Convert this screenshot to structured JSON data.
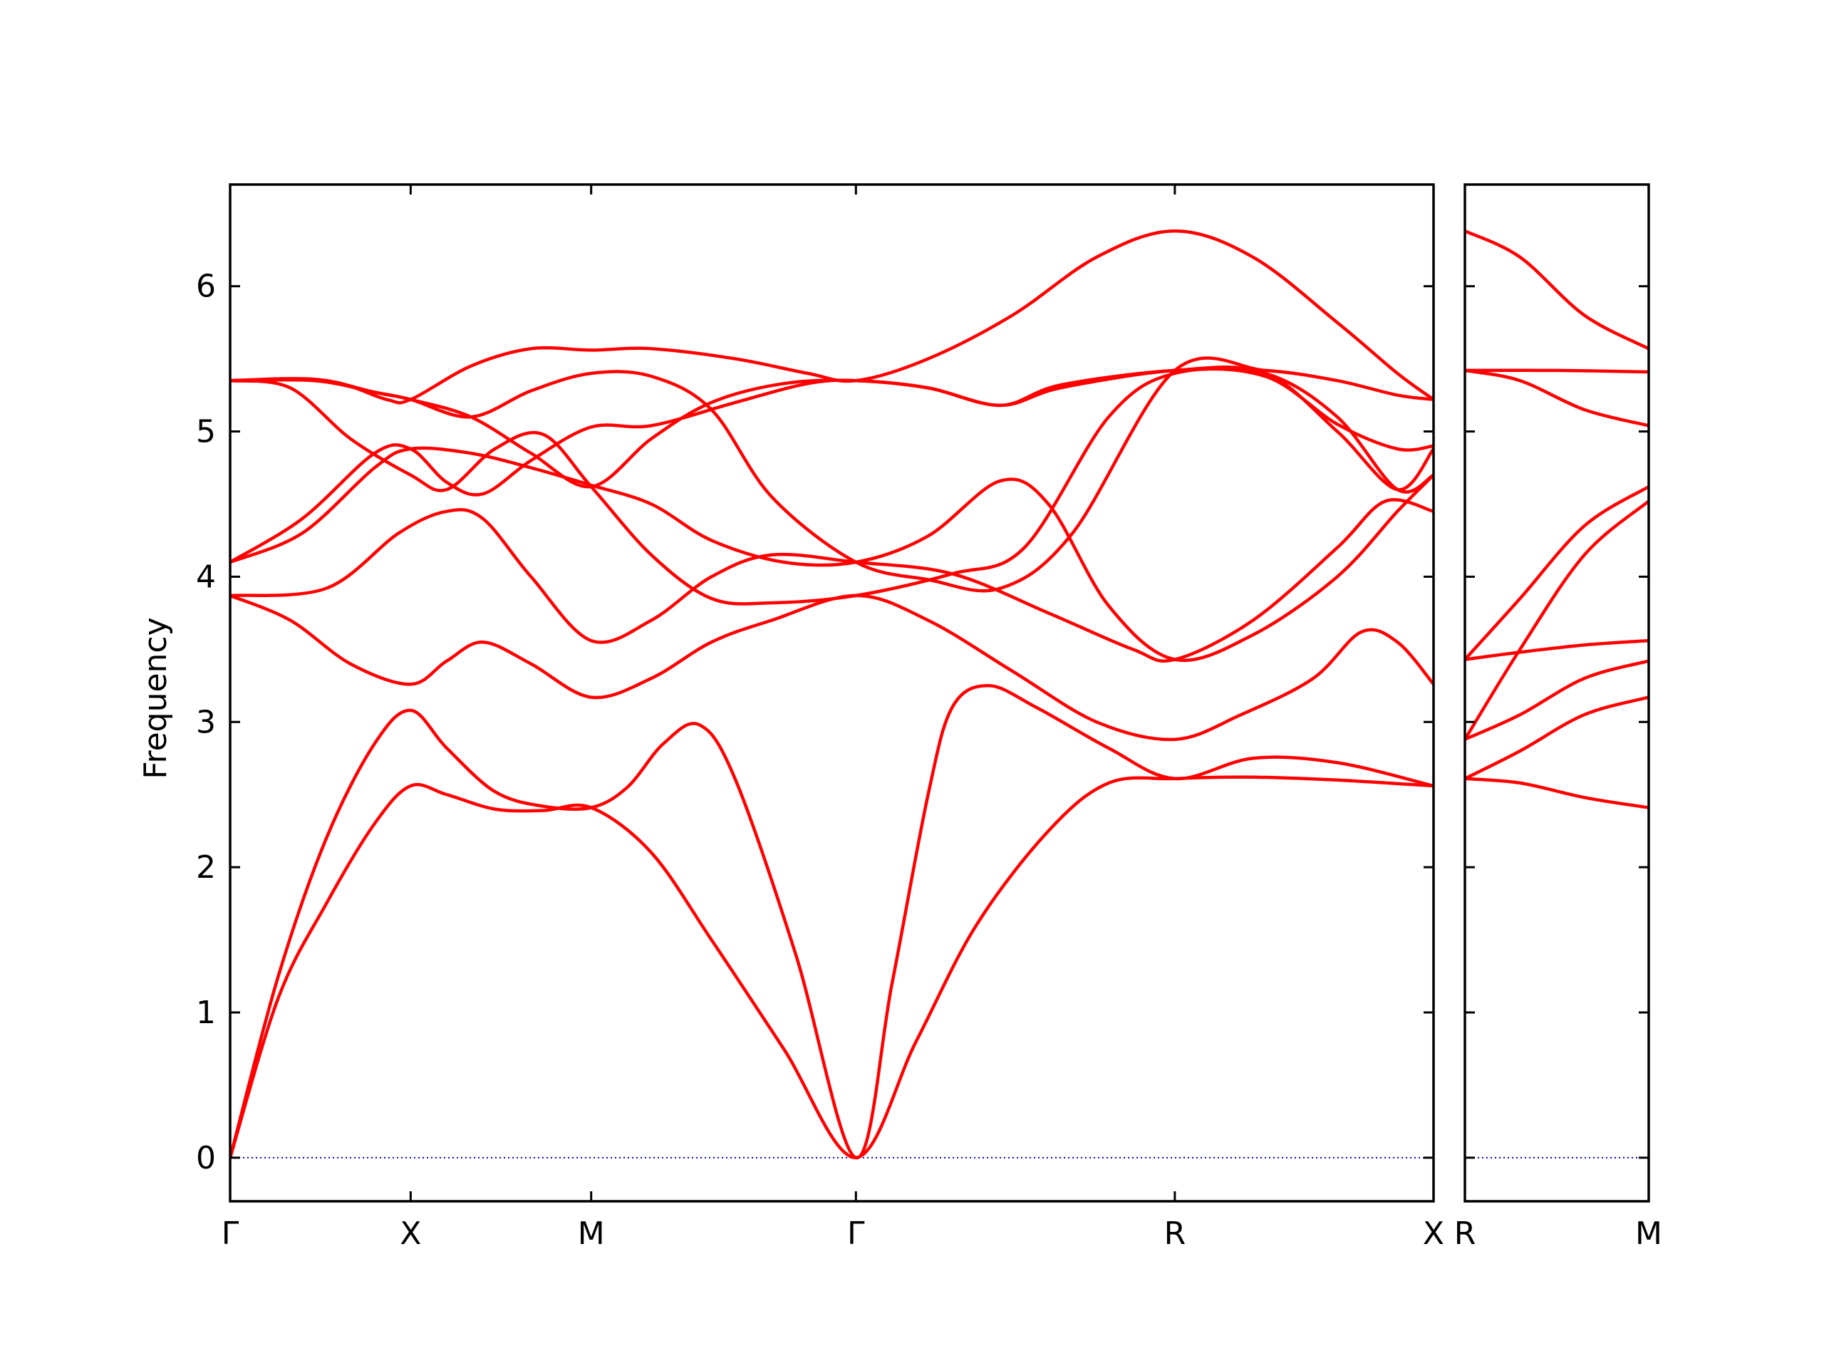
{
  "chart_data": {
    "type": "line",
    "title": "",
    "ylabel": "Frequency",
    "ylim": [
      -0.3,
      6.7
    ],
    "yticks": [
      "0",
      "1",
      "2",
      "3",
      "4",
      "5",
      "6"
    ],
    "line_color": "#ff0000",
    "zero_line_color": "#0000cc",
    "panels": [
      {
        "x_range": [
          0,
          10
        ],
        "high_symmetry_points": [
          {
            "label": "Γ",
            "x": 0
          },
          {
            "label": "X",
            "x": 1.5
          },
          {
            "label": "M",
            "x": 3
          },
          {
            "label": "Γ",
            "x": 5.2
          },
          {
            "label": "R",
            "x": 7.85
          },
          {
            "label": "X",
            "x": 10
          }
        ],
        "bands": [
          [
            [
              0,
              0
            ],
            [
              0.4,
              1.1
            ],
            [
              0.8,
              1.75
            ],
            [
              1.2,
              2.3
            ],
            [
              1.5,
              2.56
            ],
            [
              1.8,
              2.5
            ],
            [
              2.2,
              2.4
            ],
            [
              2.6,
              2.39
            ],
            [
              3,
              2.41
            ],
            [
              3.5,
              2.1
            ],
            [
              4,
              1.5
            ],
            [
              4.6,
              0.75
            ],
            [
              5.2,
              0
            ],
            [
              5.7,
              0.8
            ],
            [
              6.2,
              1.6
            ],
            [
              6.8,
              2.25
            ],
            [
              7.3,
              2.58
            ],
            [
              7.85,
              2.61
            ],
            [
              8.5,
              2.62
            ],
            [
              9.2,
              2.6
            ],
            [
              10,
              2.56
            ]
          ],
          [
            [
              0,
              0
            ],
            [
              0.4,
              1.25
            ],
            [
              0.8,
              2.2
            ],
            [
              1.2,
              2.85
            ],
            [
              1.5,
              3.08
            ],
            [
              1.8,
              2.82
            ],
            [
              2.2,
              2.52
            ],
            [
              2.6,
              2.42
            ],
            [
              3,
              2.41
            ],
            [
              3.3,
              2.55
            ],
            [
              3.6,
              2.85
            ],
            [
              3.9,
              2.98
            ],
            [
              4.2,
              2.6
            ],
            [
              4.7,
              1.4
            ],
            [
              5.2,
              0
            ],
            [
              5.5,
              1.2
            ],
            [
              5.8,
              2.5
            ],
            [
              6.0,
              3.1
            ],
            [
              6.3,
              3.25
            ],
            [
              6.7,
              3.1
            ],
            [
              7.3,
              2.82
            ],
            [
              7.85,
              2.61
            ],
            [
              8.5,
              2.75
            ],
            [
              9.2,
              2.72
            ],
            [
              10,
              2.56
            ]
          ],
          [
            [
              0,
              3.87
            ],
            [
              0.5,
              3.7
            ],
            [
              1,
              3.4
            ],
            [
              1.5,
              3.26
            ],
            [
              1.8,
              3.42
            ],
            [
              2.1,
              3.55
            ],
            [
              2.5,
              3.4
            ],
            [
              3,
              3.17
            ],
            [
              3.5,
              3.3
            ],
            [
              4,
              3.55
            ],
            [
              4.5,
              3.7
            ],
            [
              5.2,
              3.87
            ],
            [
              5.8,
              3.7
            ],
            [
              6.5,
              3.35
            ],
            [
              7.2,
              3.0
            ],
            [
              7.85,
              2.88
            ],
            [
              8.4,
              3.05
            ],
            [
              9.0,
              3.3
            ],
            [
              9.4,
              3.62
            ],
            [
              9.7,
              3.55
            ],
            [
              10,
              3.26
            ]
          ],
          [
            [
              0,
              3.87
            ],
            [
              0.8,
              3.92
            ],
            [
              1.4,
              4.3
            ],
            [
              1.8,
              4.45
            ],
            [
              2.1,
              4.4
            ],
            [
              2.5,
              4.0
            ],
            [
              3,
              3.56
            ],
            [
              3.5,
              3.7
            ],
            [
              4,
              4.0
            ],
            [
              4.5,
              4.15
            ],
            [
              5.2,
              4.1
            ],
            [
              6.0,
              4.02
            ],
            [
              6.8,
              3.75
            ],
            [
              7.5,
              3.5
            ],
            [
              7.85,
              3.43
            ],
            [
              8.5,
              3.7
            ],
            [
              9.2,
              4.2
            ],
            [
              9.6,
              4.52
            ],
            [
              10,
              4.45
            ]
          ],
          [
            [
              0,
              4.1
            ],
            [
              0.6,
              4.3
            ],
            [
              1.2,
              4.75
            ],
            [
              1.5,
              4.88
            ],
            [
              2,
              4.85
            ],
            [
              2.5,
              4.75
            ],
            [
              3,
              4.63
            ],
            [
              3.5,
              4.5
            ],
            [
              4,
              4.25
            ],
            [
              4.6,
              4.1
            ],
            [
              5.2,
              4.1
            ],
            [
              5.8,
              4.28
            ],
            [
              6.4,
              4.66
            ],
            [
              6.8,
              4.5
            ],
            [
              7.3,
              3.8
            ],
            [
              7.85,
              3.43
            ],
            [
              8.5,
              3.6
            ],
            [
              9.2,
              4.0
            ],
            [
              9.7,
              4.45
            ],
            [
              10,
              4.7
            ]
          ],
          [
            [
              0,
              4.1
            ],
            [
              0.6,
              4.4
            ],
            [
              1.2,
              4.85
            ],
            [
              1.5,
              4.88
            ],
            [
              1.8,
              4.65
            ],
            [
              2.1,
              4.57
            ],
            [
              2.5,
              4.8
            ],
            [
              3,
              5.03
            ],
            [
              3.5,
              5.04
            ],
            [
              4.2,
              5.2
            ],
            [
              4.8,
              5.33
            ],
            [
              5.2,
              5.35
            ],
            [
              5.8,
              5.3
            ],
            [
              6.4,
              5.18
            ],
            [
              6.9,
              5.3
            ],
            [
              7.85,
              5.42
            ],
            [
              8.6,
              5.4
            ],
            [
              9.2,
              5.0
            ],
            [
              9.7,
              4.6
            ],
            [
              10,
              4.88
            ]
          ],
          [
            [
              0,
              5.35
            ],
            [
              0.5,
              5.3
            ],
            [
              1,
              4.95
            ],
            [
              1.5,
              4.7
            ],
            [
              1.8,
              4.6
            ],
            [
              2.2,
              4.88
            ],
            [
              2.6,
              4.98
            ],
            [
              3,
              4.62
            ],
            [
              3.5,
              4.15
            ],
            [
              4,
              3.85
            ],
            [
              4.5,
              3.82
            ],
            [
              5.2,
              3.87
            ],
            [
              6.0,
              4.02
            ],
            [
              6.6,
              4.2
            ],
            [
              7.3,
              5.1
            ],
            [
              7.85,
              5.4
            ],
            [
              8.6,
              5.38
            ],
            [
              9.2,
              5.05
            ],
            [
              9.7,
              4.88
            ],
            [
              10,
              4.9
            ]
          ],
          [
            [
              0,
              5.35
            ],
            [
              0.7,
              5.35
            ],
            [
              1.2,
              5.27
            ],
            [
              1.5,
              5.22
            ],
            [
              2,
              5.1
            ],
            [
              2.5,
              4.85
            ],
            [
              3,
              4.62
            ],
            [
              3.5,
              4.95
            ],
            [
              4,
              5.2
            ],
            [
              4.6,
              5.33
            ],
            [
              5.2,
              5.35
            ],
            [
              5.8,
              5.3
            ],
            [
              6.4,
              5.18
            ],
            [
              6.9,
              5.32
            ],
            [
              7.85,
              5.42
            ],
            [
              8.6,
              5.4
            ],
            [
              9.2,
              5.1
            ],
            [
              9.7,
              4.6
            ],
            [
              10,
              4.7
            ]
          ],
          [
            [
              0,
              5.35
            ],
            [
              0.7,
              5.36
            ],
            [
              1.2,
              5.27
            ],
            [
              1.5,
              5.22
            ],
            [
              2,
              5.1
            ],
            [
              2.5,
              5.28
            ],
            [
              3,
              5.4
            ],
            [
              3.5,
              5.38
            ],
            [
              4,
              5.15
            ],
            [
              4.5,
              4.55
            ],
            [
              5.2,
              4.1
            ],
            [
              5.8,
              3.98
            ],
            [
              6.4,
              3.92
            ],
            [
              7.0,
              4.3
            ],
            [
              7.85,
              5.42
            ],
            [
              8.6,
              5.42
            ],
            [
              9.2,
              5.35
            ],
            [
              9.7,
              5.25
            ],
            [
              10,
              5.22
            ]
          ],
          [
            [
              0,
              5.35
            ],
            [
              0.8,
              5.35
            ],
            [
              1.3,
              5.22
            ],
            [
              1.5,
              5.22
            ],
            [
              2,
              5.45
            ],
            [
              2.5,
              5.57
            ],
            [
              3,
              5.56
            ],
            [
              3.5,
              5.57
            ],
            [
              4.2,
              5.5
            ],
            [
              4.8,
              5.4
            ],
            [
              5.2,
              5.35
            ],
            [
              5.8,
              5.5
            ],
            [
              6.5,
              5.8
            ],
            [
              7.2,
              6.2
            ],
            [
              7.85,
              6.38
            ],
            [
              8.5,
              6.2
            ],
            [
              9.2,
              5.75
            ],
            [
              9.7,
              5.4
            ],
            [
              10,
              5.22
            ]
          ]
        ]
      },
      {
        "x_range": [
          0,
          1
        ],
        "high_symmetry_points": [
          {
            "label": "R",
            "x": 0
          },
          {
            "label": "M",
            "x": 1
          }
        ],
        "bands": [
          [
            [
              0,
              2.61
            ],
            [
              0.3,
              2.58
            ],
            [
              0.65,
              2.48
            ],
            [
              1,
              2.41
            ]
          ],
          [
            [
              0,
              2.61
            ],
            [
              0.3,
              2.8
            ],
            [
              0.65,
              3.05
            ],
            [
              1,
              3.17
            ]
          ],
          [
            [
              0,
              2.88
            ],
            [
              0.3,
              3.05
            ],
            [
              0.65,
              3.3
            ],
            [
              1,
              3.42
            ]
          ],
          [
            [
              0,
              3.43
            ],
            [
              0.3,
              3.48
            ],
            [
              0.65,
              3.53
            ],
            [
              1,
              3.56
            ]
          ],
          [
            [
              0,
              2.88
            ],
            [
              0.3,
              3.5
            ],
            [
              0.65,
              4.15
            ],
            [
              1,
              4.52
            ]
          ],
          [
            [
              0,
              3.43
            ],
            [
              0.3,
              3.85
            ],
            [
              0.65,
              4.35
            ],
            [
              1,
              4.62
            ]
          ],
          [
            [
              0,
              5.42
            ],
            [
              0.3,
              5.35
            ],
            [
              0.65,
              5.15
            ],
            [
              1,
              5.04
            ]
          ],
          [
            [
              0,
              5.42
            ],
            [
              0.5,
              5.42
            ],
            [
              1,
              5.41
            ]
          ],
          [
            [
              0,
              6.38
            ],
            [
              0.3,
              6.2
            ],
            [
              0.65,
              5.8
            ],
            [
              1,
              5.57
            ]
          ]
        ]
      }
    ]
  }
}
